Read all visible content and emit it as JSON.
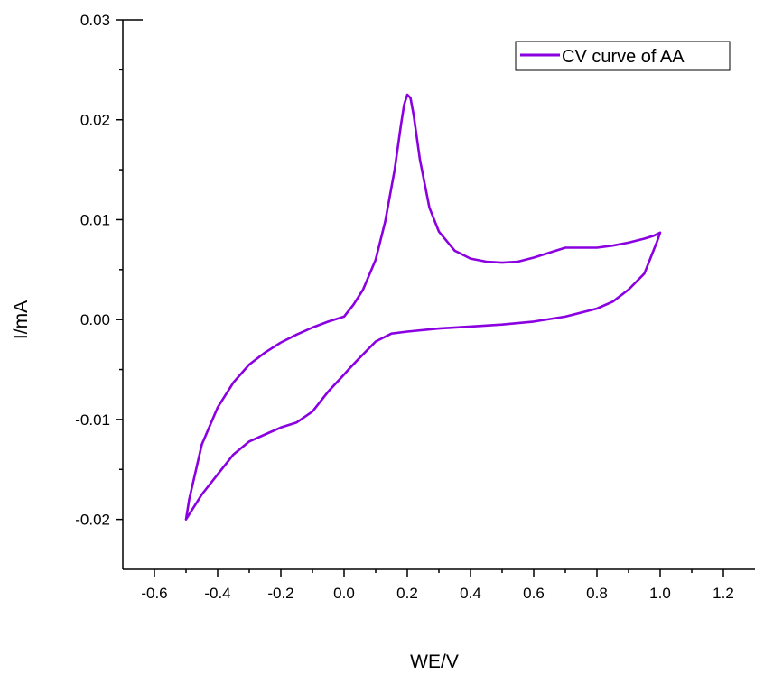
{
  "chart_data": {
    "type": "line",
    "title": "",
    "xlabel": "WE/V",
    "ylabel": "I/mA",
    "xlim": [
      -0.7,
      1.3
    ],
    "ylim": [
      -0.025,
      0.03
    ],
    "xticks": [
      -0.6,
      -0.4,
      -0.2,
      0.0,
      0.2,
      0.4,
      0.6,
      0.8,
      1.0,
      1.2
    ],
    "xtick_labels": [
      "-0.6",
      "-0.4",
      "-0.2",
      "0.0",
      "0.2",
      "0.4",
      "0.6",
      "0.8",
      "1.0",
      "1.2"
    ],
    "yticks": [
      -0.02,
      -0.01,
      0.0,
      0.01,
      0.02,
      0.03
    ],
    "ytick_labels": [
      "-0.02",
      "-0.01",
      "0.00",
      "0.01",
      "0.02",
      "0.03"
    ],
    "grid": false,
    "legend_position": "top-right",
    "series": [
      {
        "name": "CV curve of AA",
        "color": "#8B00E0",
        "x": [
          -0.5,
          -0.49,
          -0.45,
          -0.4,
          -0.35,
          -0.3,
          -0.25,
          -0.2,
          -0.15,
          -0.1,
          -0.05,
          0.0,
          0.03,
          0.06,
          0.1,
          0.13,
          0.16,
          0.18,
          0.19,
          0.2,
          0.21,
          0.22,
          0.24,
          0.27,
          0.3,
          0.35,
          0.4,
          0.45,
          0.5,
          0.55,
          0.6,
          0.65,
          0.7,
          0.75,
          0.8,
          0.85,
          0.9,
          0.95,
          0.98,
          1.0,
          0.99,
          0.97,
          0.95,
          0.9,
          0.85,
          0.8,
          0.7,
          0.6,
          0.5,
          0.4,
          0.3,
          0.2,
          0.15,
          0.1,
          0.05,
          0.02,
          0.0,
          -0.05,
          -0.1,
          -0.15,
          -0.2,
          -0.25,
          -0.3,
          -0.35,
          -0.4,
          -0.45,
          -0.48,
          -0.5
        ],
        "y": [
          -0.02,
          -0.018,
          -0.0125,
          -0.0088,
          -0.0063,
          -0.0045,
          -0.0033,
          -0.0023,
          -0.0015,
          -0.0008,
          -0.0002,
          0.0003,
          0.0015,
          0.003,
          0.006,
          0.0098,
          0.015,
          0.0195,
          0.0215,
          0.0225,
          0.0222,
          0.0205,
          0.016,
          0.0112,
          0.0088,
          0.0069,
          0.0061,
          0.0058,
          0.0057,
          0.0058,
          0.0062,
          0.0067,
          0.0072,
          0.0072,
          0.0072,
          0.0074,
          0.0077,
          0.0081,
          0.0084,
          0.0087,
          0.0078,
          0.0062,
          0.0046,
          0.003,
          0.0018,
          0.0011,
          0.0003,
          -0.0002,
          -0.0005,
          -0.0007,
          -0.0009,
          -0.0012,
          -0.0014,
          -0.0022,
          -0.0038,
          -0.0048,
          -0.0055,
          -0.0072,
          -0.0092,
          -0.0103,
          -0.0108,
          -0.0115,
          -0.0122,
          -0.0135,
          -0.0155,
          -0.0175,
          -0.019,
          -0.02
        ]
      }
    ]
  }
}
